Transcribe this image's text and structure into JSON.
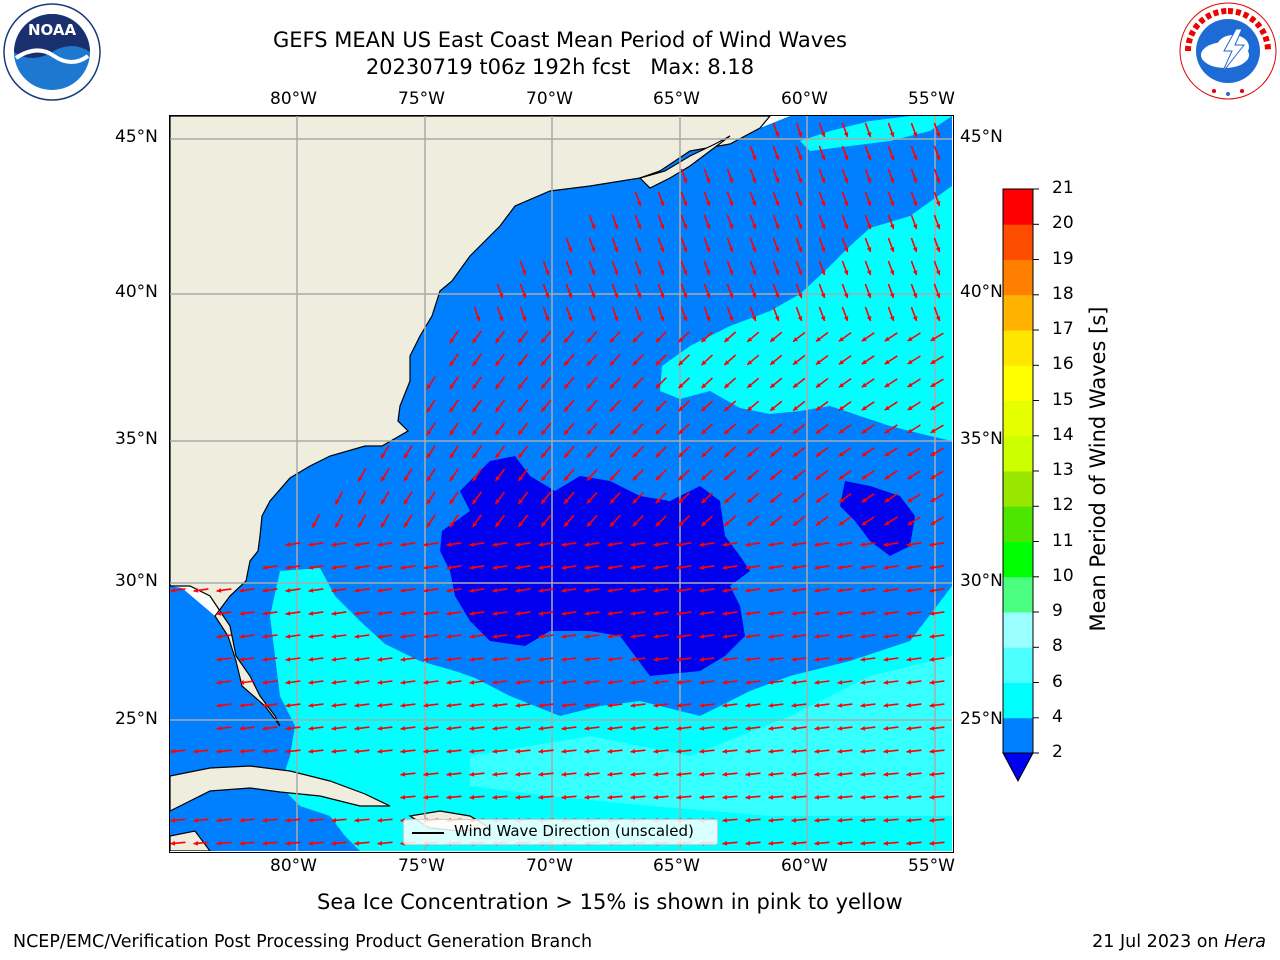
{
  "header": {
    "title_line1": "GEFS MEAN US East Coast Mean Period of Wind Waves",
    "title_line2": "20230719 t06z 192h fcst   Max: 8.18"
  },
  "logos": {
    "left": "NOAA",
    "left_ring_text": "NATIONAL OCEANIC AND ATMOSPHERIC ADMINISTRATION · U.S. DEPARTMENT OF COMMERCE",
    "right_ring_text": "NATIONAL WEATHER SERVICE"
  },
  "map": {
    "lon_ticks": [
      "80°W",
      "75°W",
      "70°W",
      "65°W",
      "60°W",
      "55°W"
    ],
    "lat_ticks": [
      "45°N",
      "40°N",
      "35°N",
      "30°N",
      "25°N"
    ],
    "legend_label": "Wind Wave Direction (unscaled)",
    "colors": {
      "land": "#efedde",
      "band_lt2": "#0000ee",
      "band_2_4": "#0080ff",
      "band_4_6": "#00ffff",
      "band_6_8": "#4dffff",
      "arrow": "#ff0000",
      "grid": "#aaaaaa"
    }
  },
  "colorbar": {
    "label": "Mean Period of Wind Waves [s]",
    "ticks": [
      "2",
      "4",
      "6",
      "8",
      "9",
      "10",
      "11",
      "12",
      "13",
      "14",
      "15",
      "16",
      "17",
      "18",
      "19",
      "20",
      "21"
    ],
    "colors": [
      "#0080ff",
      "#00ffff",
      "#4dffff",
      "#99ffff",
      "#4dff80",
      "#00ff00",
      "#4de600",
      "#99e600",
      "#ccff00",
      "#e6ff00",
      "#ffff00",
      "#ffe600",
      "#ffb300",
      "#ff8000",
      "#ff4d00",
      "#ff0000"
    ],
    "extend_color": "#0000ee"
  },
  "footer": {
    "caption": "Sea Ice Concentration > 15% is shown in pink to yellow",
    "left": "NCEP/EMC/Verification Post Processing Product Generation Branch",
    "right_date": "21 Jul 2023 on ",
    "right_host": "Hera"
  }
}
